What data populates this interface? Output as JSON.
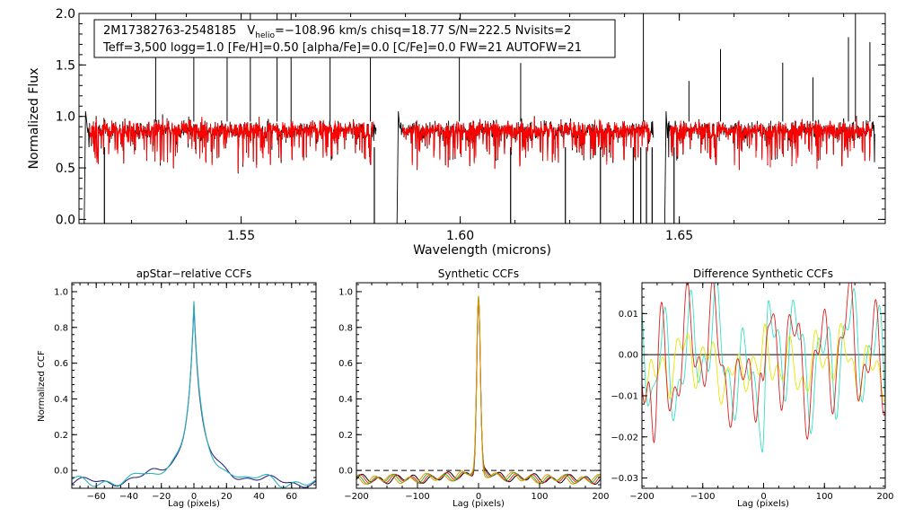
{
  "chart_data": [
    {
      "id": "spectrum",
      "type": "line",
      "xlabel": "Wavelength (microns)",
      "ylabel": "Normalized Flux",
      "xlim": [
        1.513,
        1.697
      ],
      "ylim": [
        -0.04,
        2.0
      ],
      "xticks": [
        1.55,
        1.6,
        1.65
      ],
      "xtick_labels": [
        "1.55",
        "1.60",
        "1.65"
      ],
      "yticks": [
        0.0,
        0.5,
        1.0,
        1.5,
        2.0
      ],
      "ytick_labels": [
        "0.0",
        "0.5",
        "1.0",
        "1.5",
        "2.0"
      ],
      "info": {
        "star_id": "2M17382763-2548185",
        "v_sym": "V",
        "v_sub": "helio",
        "v_rest": "=−108.96 km/s  chisq=18.77  S/N=222.5  Nvisits=2",
        "line2": "Teff=3,500 logg=1.0 [Fe/H]=0.50 [alpha/Fe]=0.0 [C/Fe]=0.0 FW=21 AUTOFW=21"
      },
      "chips": [
        [
          1.5148,
          1.5808
        ],
        [
          1.5862,
          1.6441
        ],
        [
          1.6473,
          1.6946
        ]
      ],
      "continuum": 0.87,
      "series": [
        {
          "name": "observed",
          "color": "#000000"
        },
        {
          "name": "model",
          "color": "#ff0000"
        }
      ],
      "emission_spikes": [
        1.5305,
        1.5392,
        1.5468,
        1.5521,
        1.5582,
        1.5614,
        1.5703,
        1.5795,
        1.5998,
        1.6138,
        1.6418,
        1.6522,
        1.6594,
        1.6736,
        1.6805,
        1.6886,
        1.6902,
        1.6935
      ],
      "absorption_dips": [
        1.5188,
        1.5804,
        1.6115,
        1.624,
        1.632,
        1.6395,
        1.6412,
        1.6425,
        1.6438,
        1.6488
      ]
    },
    {
      "id": "ccf-apstar",
      "type": "line",
      "title": "apStar−relative CCFs",
      "xlabel": "Lag (pixels)",
      "ylabel": "Normalized CCF",
      "xlim": [
        -75,
        75
      ],
      "ylim": [
        -0.1,
        1.05
      ],
      "xticks": [
        -60,
        -40,
        -20,
        0,
        20,
        40,
        60
      ],
      "xtick_labels": [
        "−60",
        "−40",
        "−20",
        "0",
        "20",
        "40",
        "60"
      ],
      "yticks": [
        0.0,
        0.2,
        0.4,
        0.6,
        0.8,
        1.0
      ],
      "ytick_labels": [
        "0.0",
        "0.2",
        "0.4",
        "0.6",
        "0.8",
        "1.0"
      ],
      "peak_lag": 0,
      "peak_value": 1.0,
      "series": [
        {
          "name": "ccf-1",
          "color": "#2a2a86"
        },
        {
          "name": "ccf-2",
          "color": "#2fb0b8"
        }
      ]
    },
    {
      "id": "ccf-synthetic",
      "type": "line",
      "title": "Synthetic CCFs",
      "xlabel": "Lag (pixels)",
      "xlim": [
        -200,
        200
      ],
      "ylim": [
        -0.1,
        1.05
      ],
      "xticks": [
        -200,
        -100,
        0,
        100,
        200
      ],
      "xtick_labels": [
        "−200",
        "−100",
        "0",
        "100",
        "200"
      ],
      "yticks": [
        0.0,
        0.2,
        0.4,
        0.6,
        0.8,
        1.0
      ],
      "ytick_labels": [
        "0.0",
        "0.2",
        "0.4",
        "0.6",
        "0.8",
        "1.0"
      ],
      "peak_lag": 0,
      "peak_value": 1.0,
      "baseline": 0.0,
      "series": [
        {
          "name": "ccf-black",
          "color": "#000000"
        },
        {
          "name": "ccf-red",
          "color": "#ee2222"
        },
        {
          "name": "ccf-green",
          "color": "#33aa33"
        },
        {
          "name": "ccf-orange",
          "color": "#e69500"
        }
      ]
    },
    {
      "id": "ccf-difference",
      "type": "line",
      "title": "Difference Synthetic CCFs",
      "xlabel": "Lag (pixels)",
      "xlim": [
        -200,
        200
      ],
      "ylim": [
        -0.0325,
        0.0175
      ],
      "xticks": [
        -200,
        -100,
        0,
        100,
        200
      ],
      "xtick_labels": [
        "−200",
        "−100",
        "0",
        "100",
        "200"
      ],
      "yticks": [
        -0.03,
        -0.02,
        -0.01,
        0.0,
        0.01
      ],
      "ytick_labels": [
        "−0.03",
        "−0.02",
        "−0.01",
        "0.00",
        "0.01"
      ],
      "baseline": 0.0,
      "series": [
        {
          "name": "diff-cyan",
          "color": "#35e0c0"
        },
        {
          "name": "diff-yellow",
          "color": "#e6e600"
        },
        {
          "name": "diff-red",
          "color": "#e02020"
        }
      ]
    }
  ]
}
